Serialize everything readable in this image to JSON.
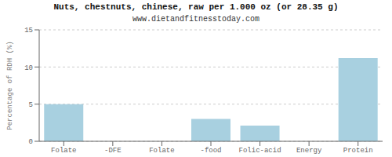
{
  "chart_data": {
    "type": "bar",
    "title": "Nuts, chestnuts, chinese, raw per 1.000 oz (or 28.35 g)",
    "subtitle": "www.dietandfitnesstoday.com",
    "categories": [
      "Folate",
      "-DFE",
      "Folate",
      "-food",
      "Folic-acid",
      "Energy",
      "Protein"
    ],
    "values": [
      5.0,
      0.0,
      0.0,
      3.0,
      2.1,
      0.0,
      11.2
    ],
    "color": "#a8d0e0",
    "ylabel": "Percentage of RDH (%)",
    "ylim": [
      0,
      15
    ],
    "yticks": [
      0,
      5,
      10,
      15
    ],
    "grid": true
  }
}
